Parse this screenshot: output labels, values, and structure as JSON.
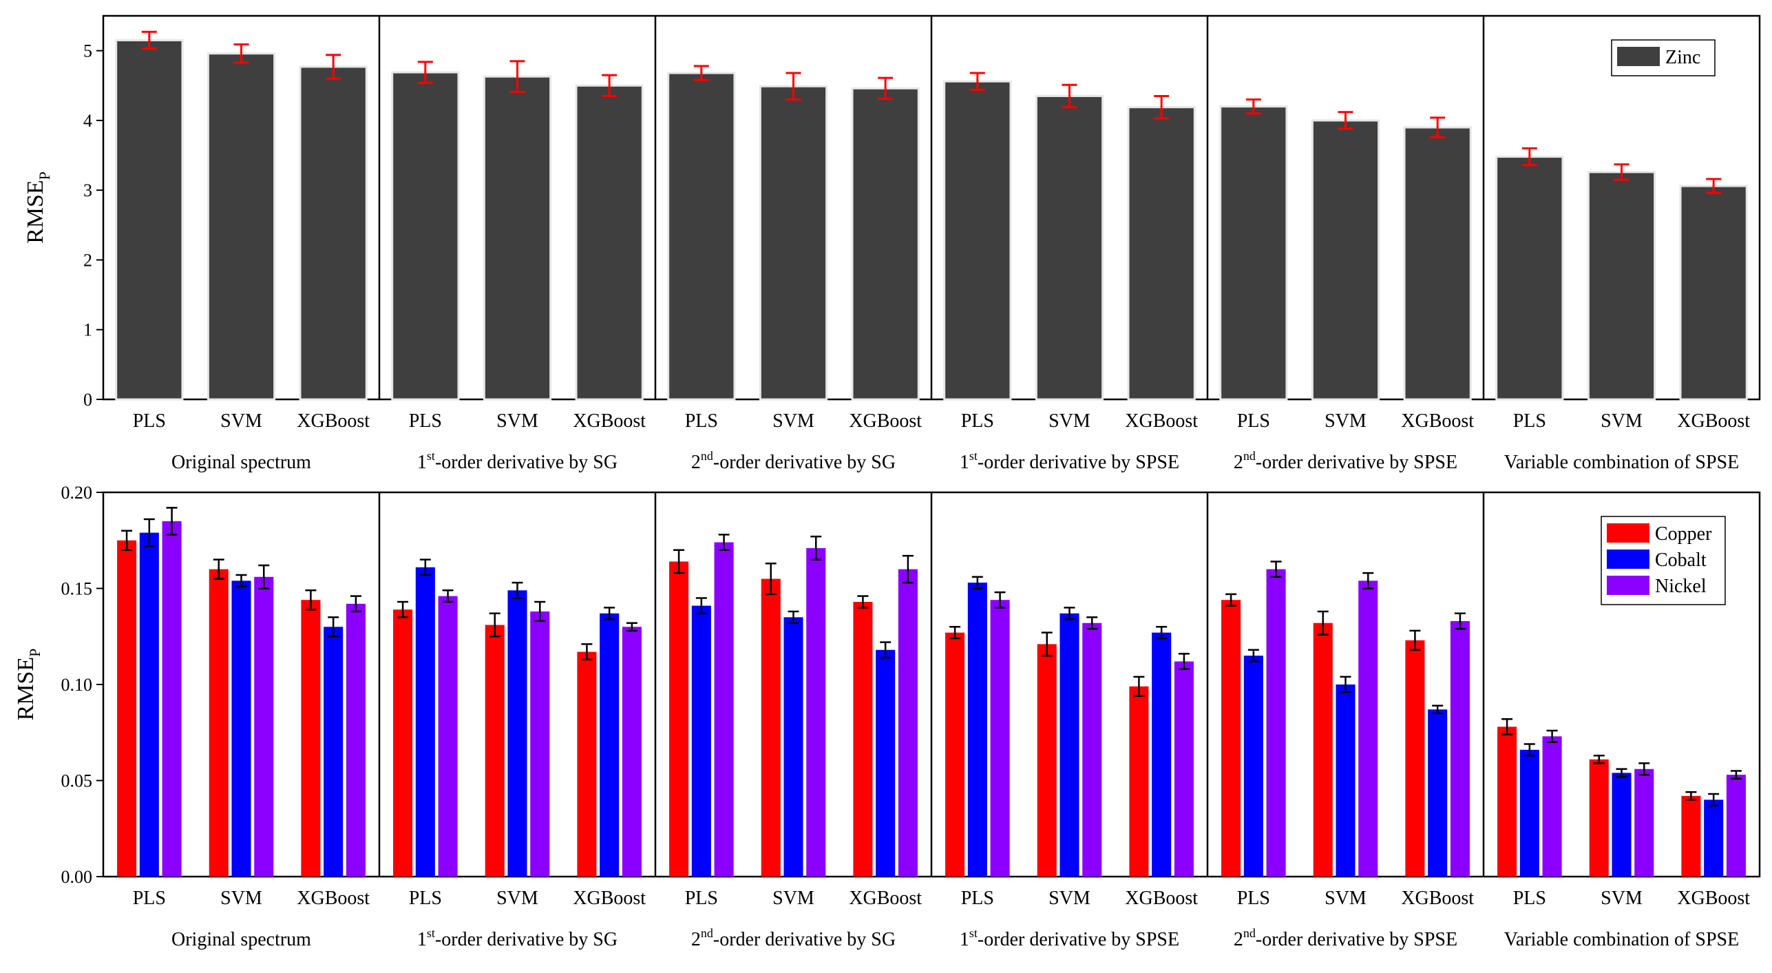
{
  "chart_data": [
    {
      "type": "bar",
      "id": "zinc",
      "ylabel": "RMSE",
      "ylabel_sub": "P",
      "ylim": [
        0,
        5.5
      ],
      "yticks": [
        0,
        1,
        2,
        3,
        4,
        5
      ],
      "ytick_labels": [
        "0",
        "1",
        "2",
        "3",
        "4",
        "5"
      ],
      "groups": [
        {
          "label": "Original spectrum",
          "label_sup": ""
        },
        {
          "label": "1",
          "label_sup": "st",
          "label_rest": "-order derivative by SG"
        },
        {
          "label": "2",
          "label_sup": "nd",
          "label_rest": "-order derivative by SG"
        },
        {
          "label": "1",
          "label_sup": "st",
          "label_rest": "-order derivative by SPSE"
        },
        {
          "label": "2",
          "label_sup": "nd",
          "label_rest": "-order derivative by SPSE"
        },
        {
          "label": "Variable combination of SPSE",
          "label_sup": ""
        }
      ],
      "models": [
        "PLS",
        "SVM",
        "XGBoost"
      ],
      "series": [
        {
          "name": "Zinc",
          "color": "#3f3f3f",
          "values": [
            5.15,
            4.96,
            4.77,
            4.69,
            4.63,
            4.5,
            4.68,
            4.49,
            4.46,
            4.56,
            4.35,
            4.19,
            4.2,
            4.0,
            3.9,
            3.48,
            3.26,
            3.06
          ],
          "errors": [
            0.12,
            0.13,
            0.17,
            0.15,
            0.22,
            0.15,
            0.1,
            0.19,
            0.15,
            0.12,
            0.16,
            0.16,
            0.1,
            0.12,
            0.14,
            0.12,
            0.11,
            0.1
          ]
        }
      ],
      "error_color": "#ff0000",
      "legend_position": "top-right"
    },
    {
      "type": "bar",
      "id": "cu-co-ni",
      "ylabel": "RMSE",
      "ylabel_sub": "P",
      "ylim": [
        0,
        0.2
      ],
      "yticks": [
        0,
        0.05,
        0.1,
        0.15,
        0.2
      ],
      "ytick_labels": [
        "0.00",
        "0.05",
        "0.10",
        "0.15",
        "0.20"
      ],
      "groups": [
        {
          "label": "Original spectrum",
          "label_sup": ""
        },
        {
          "label": "1",
          "label_sup": "st",
          "label_rest": "-order derivative by SG"
        },
        {
          "label": "2",
          "label_sup": "nd",
          "label_rest": "-order derivative by SG"
        },
        {
          "label": "1",
          "label_sup": "st",
          "label_rest": "-order derivative by SPSE"
        },
        {
          "label": "2",
          "label_sup": "nd",
          "label_rest": "-order derivative by SPSE"
        },
        {
          "label": "Variable combination of SPSE",
          "label_sup": ""
        }
      ],
      "models": [
        "PLS",
        "SVM",
        "XGBoost"
      ],
      "series": [
        {
          "name": "Copper",
          "color": "#ff0000",
          "values": [
            0.175,
            0.16,
            0.144,
            0.139,
            0.131,
            0.117,
            0.164,
            0.155,
            0.143,
            0.127,
            0.121,
            0.099,
            0.144,
            0.132,
            0.123,
            0.078,
            0.061,
            0.042
          ],
          "errors": [
            0.005,
            0.005,
            0.005,
            0.004,
            0.006,
            0.004,
            0.006,
            0.008,
            0.003,
            0.003,
            0.006,
            0.005,
            0.003,
            0.006,
            0.005,
            0.004,
            0.002,
            0.002
          ]
        },
        {
          "name": "Cobalt",
          "color": "#0000ff",
          "values": [
            0.179,
            0.154,
            0.13,
            0.161,
            0.149,
            0.137,
            0.141,
            0.135,
            0.118,
            0.153,
            0.137,
            0.127,
            0.115,
            0.1,
            0.087,
            0.066,
            0.054,
            0.04
          ],
          "errors": [
            0.007,
            0.003,
            0.005,
            0.004,
            0.004,
            0.003,
            0.004,
            0.003,
            0.004,
            0.003,
            0.003,
            0.003,
            0.003,
            0.004,
            0.002,
            0.003,
            0.002,
            0.003
          ]
        },
        {
          "name": "Nickel",
          "color": "#8b00ff",
          "values": [
            0.185,
            0.156,
            0.142,
            0.146,
            0.138,
            0.13,
            0.174,
            0.171,
            0.16,
            0.144,
            0.132,
            0.112,
            0.16,
            0.154,
            0.133,
            0.073,
            0.056,
            0.053
          ],
          "errors": [
            0.007,
            0.006,
            0.004,
            0.003,
            0.005,
            0.002,
            0.004,
            0.006,
            0.007,
            0.004,
            0.003,
            0.004,
            0.004,
            0.004,
            0.004,
            0.003,
            0.003,
            0.002
          ]
        }
      ],
      "error_color": "#000000",
      "legend_position": "top-right"
    }
  ]
}
